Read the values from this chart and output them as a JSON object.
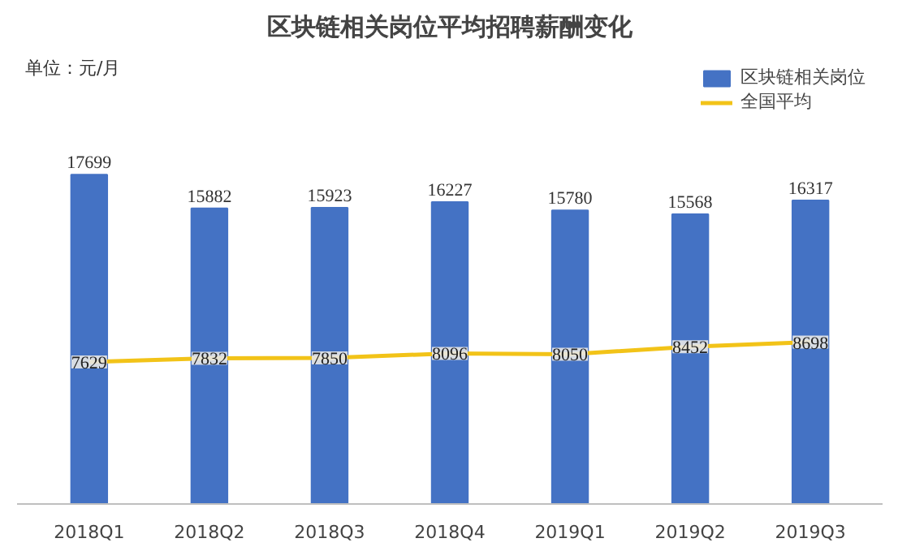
{
  "chart_data": {
    "type": "bar",
    "title": "区块链相关岗位平均招聘薪酬变化",
    "annotations": [
      "单位：元/月"
    ],
    "categories": [
      "2018Q1",
      "2018Q2",
      "2018Q3",
      "2018Q4",
      "2019Q1",
      "2019Q2",
      "2019Q3"
    ],
    "data_labels": true,
    "legend": "top right",
    "grid": false,
    "series": [
      {
        "name": "区块链相关岗位",
        "color": "#4472c4",
        "values": [
          17699,
          15882,
          15923,
          16227,
          15780,
          15568,
          16317
        ]
      },
      {
        "name": "全国平均",
        "type": "line",
        "marker": "square",
        "color": "#f2c318",
        "values": [
          7629,
          7832,
          7850,
          8096,
          8050,
          8452,
          8698
        ]
      }
    ]
  }
}
